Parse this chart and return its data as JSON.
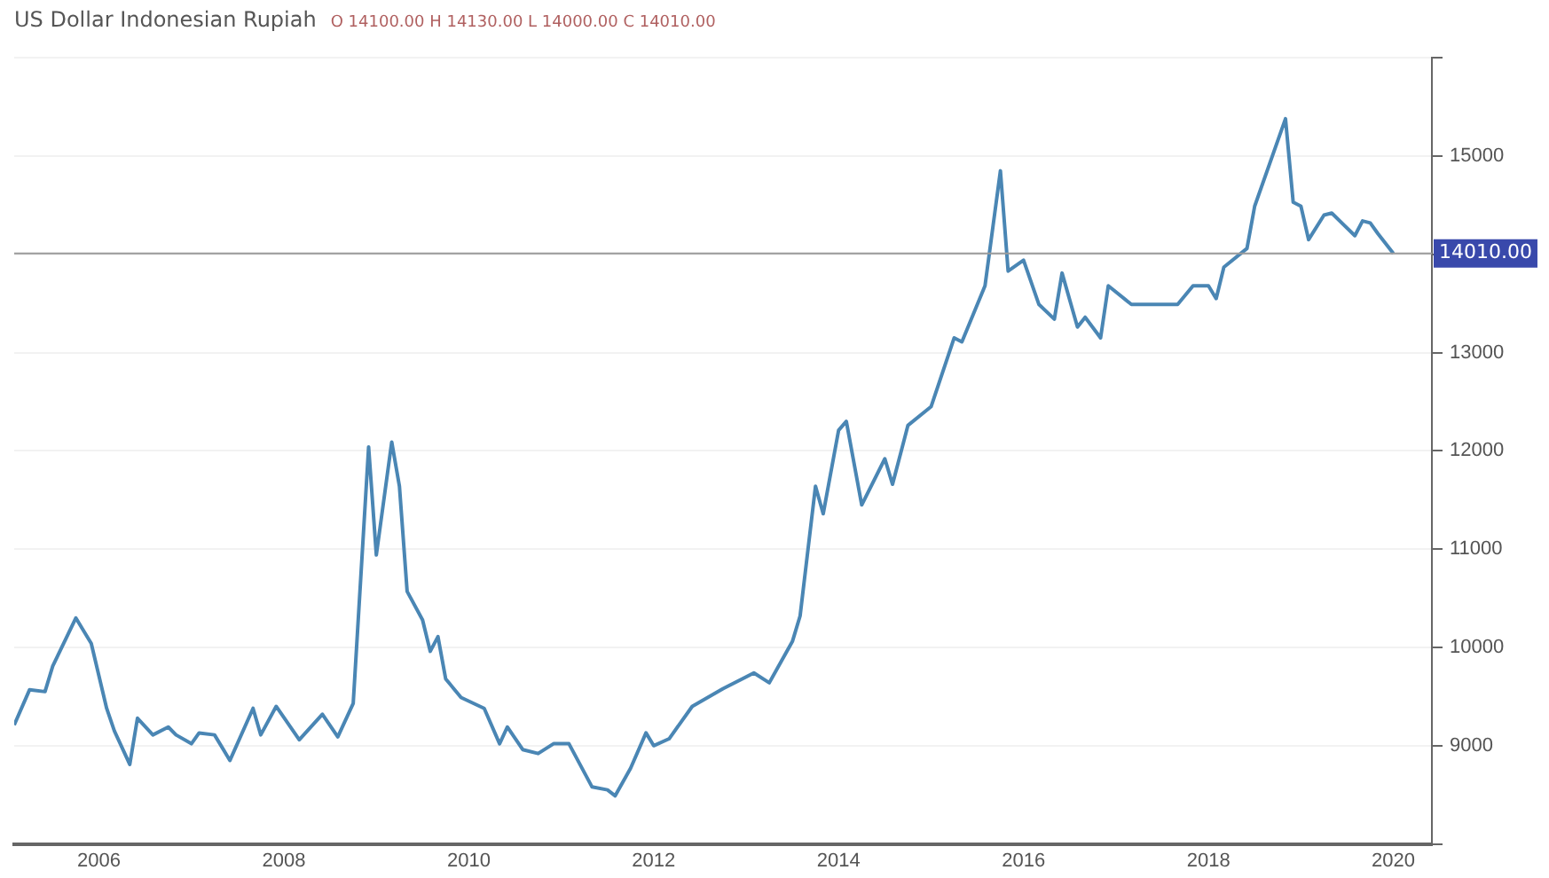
{
  "chart_data": {
    "type": "line",
    "title": "US Dollar Indonesian Rupiah",
    "subtitle": "O 14100.00 H 14130.00 L 14000.00 C 14010.00",
    "x": [
      "2005-02",
      "2005-04",
      "2005-06",
      "2005-07",
      "2005-10",
      "2005-12",
      "2006-02",
      "2006-03",
      "2006-05",
      "2006-06",
      "2006-08",
      "2006-10",
      "2006-11",
      "2007-01",
      "2007-02",
      "2007-04",
      "2007-06",
      "2007-09",
      "2007-10",
      "2007-12",
      "2008-03",
      "2008-06",
      "2008-08",
      "2008-10",
      "2008-12",
      "2009-01",
      "2009-03",
      "2009-04",
      "2009-05",
      "2009-07",
      "2009-08",
      "2009-09",
      "2009-10",
      "2009-12",
      "2010-03",
      "2010-05",
      "2010-06",
      "2010-08",
      "2010-10",
      "2010-12",
      "2011-02",
      "2011-05",
      "2011-07",
      "2011-08",
      "2011-10",
      "2011-12",
      "2012-01",
      "2012-03",
      "2012-06",
      "2012-10",
      "2013-02",
      "2013-04",
      "2013-07",
      "2013-08",
      "2013-10",
      "2013-11",
      "2014-01",
      "2014-02",
      "2014-04",
      "2014-07",
      "2014-08",
      "2014-10",
      "2015-01",
      "2015-04",
      "2015-05",
      "2015-08",
      "2015-10",
      "2015-11",
      "2016-01",
      "2016-03",
      "2016-05",
      "2016-06",
      "2016-08",
      "2016-09",
      "2016-11",
      "2016-12",
      "2017-03",
      "2017-09",
      "2017-11",
      "2018-01",
      "2018-02",
      "2018-03",
      "2018-06",
      "2018-07",
      "2018-11",
      "2018-12",
      "2019-01",
      "2019-02",
      "2019-04",
      "2019-05",
      "2019-08",
      "2019-09",
      "2019-10",
      "2019-11",
      "2020-01"
    ],
    "series": [
      {
        "color": "#4a86b4",
        "values": [
          9210,
          9570,
          9550,
          9810,
          10300,
          10040,
          9380,
          9150,
          8810,
          9280,
          9110,
          9190,
          9110,
          9020,
          9130,
          9110,
          8850,
          9380,
          9110,
          9400,
          9060,
          9320,
          9090,
          9430,
          12040,
          10940,
          12090,
          11640,
          10570,
          10280,
          9960,
          10110,
          9680,
          9490,
          9380,
          9020,
          9190,
          8960,
          8920,
          9020,
          9020,
          8580,
          8550,
          8490,
          8770,
          9130,
          9000,
          9070,
          9400,
          9580,
          9740,
          9640,
          10060,
          10320,
          11640,
          11360,
          12210,
          12300,
          11450,
          11920,
          11660,
          12260,
          12450,
          13150,
          13110,
          13680,
          14850,
          13830,
          13940,
          13490,
          13340,
          13810,
          13260,
          13360,
          13150,
          13680,
          13490,
          13490,
          13680,
          13680,
          13550,
          13870,
          14060,
          14490,
          15380,
          14530,
          14490,
          14150,
          14400,
          14420,
          14190,
          14340,
          14320,
          14210,
          14010
        ]
      }
    ],
    "xlim": [
      "2005-02",
      "2020-06"
    ],
    "xticks": [
      "2006",
      "2008",
      "2010",
      "2012",
      "2014",
      "2016",
      "2018",
      "2020"
    ],
    "ylim": [
      8000,
      16000
    ],
    "yticks": [
      {
        "value": 8000,
        "label": null
      },
      9000,
      10000,
      11000,
      12000,
      13000,
      {
        "value": 14000,
        "label": null
      },
      15000,
      {
        "value": 16000,
        "label": null
      }
    ],
    "ref_lines": [
      {
        "axis": "y",
        "value": 14010,
        "label": "14010.00"
      }
    ],
    "grid": "y",
    "marker": "none",
    "line_style": "solid",
    "legend": false
  }
}
